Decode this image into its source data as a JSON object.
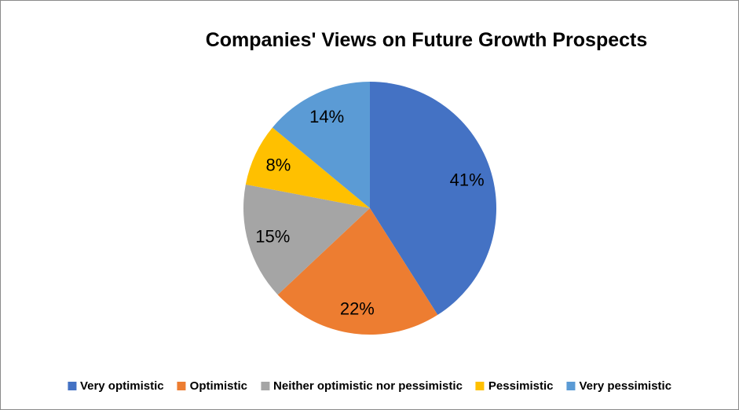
{
  "window": {
    "background_color": "#ffffff",
    "border_color": "#8a8a8a"
  },
  "chart_data": {
    "type": "pie",
    "title": "Companies' Views on Future Growth Prospects",
    "categories": [
      "Very optimistic",
      "Optimistic",
      "Neither optimistic nor pessimistic",
      "Pessimistic",
      "Very pessimistic"
    ],
    "values": [
      41,
      22,
      15,
      8,
      14
    ],
    "labels": [
      "41%",
      "22%",
      "15%",
      "8%",
      "14%"
    ],
    "colors": [
      "#4472C4",
      "#ED7D31",
      "#A5A5A5",
      "#FFC000",
      "#5B9BD5"
    ],
    "start_angle_deg": 0,
    "direction": "clockwise",
    "legend_position": "bottom",
    "data_label_color": "#000000",
    "title_color": "#000000"
  }
}
